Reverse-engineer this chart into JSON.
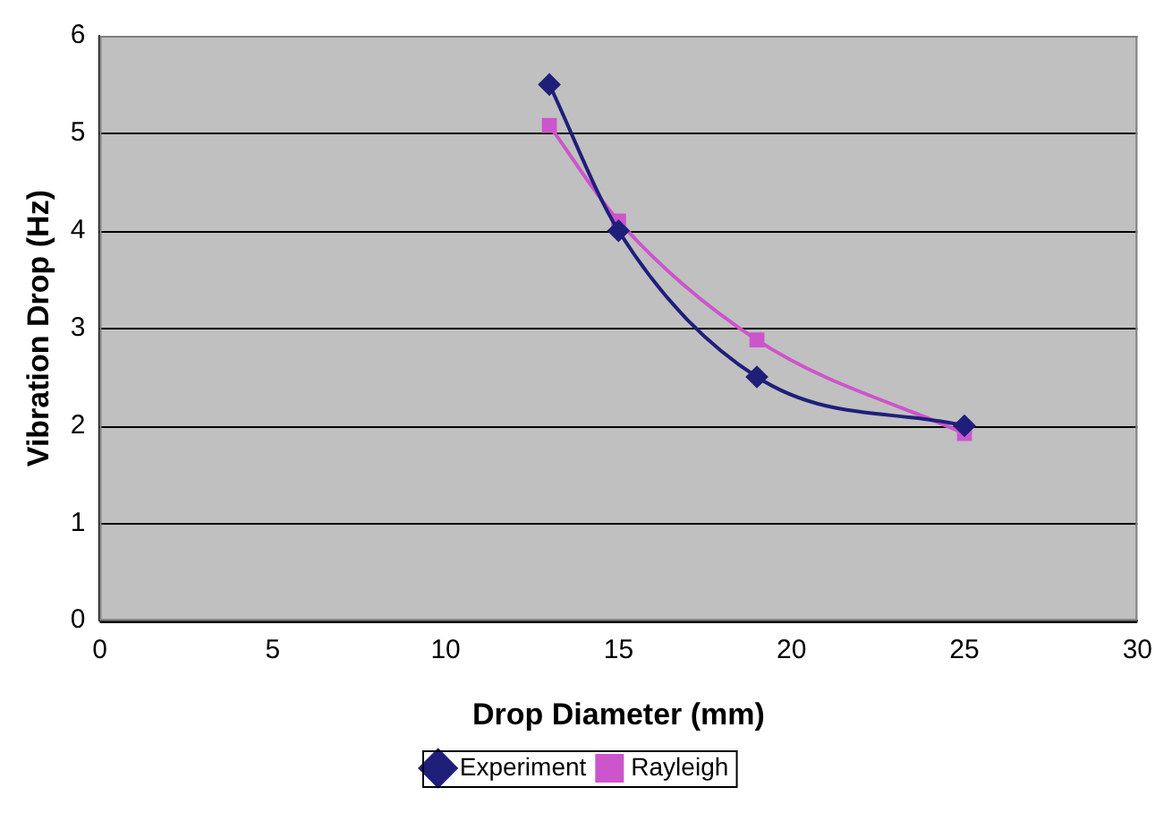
{
  "chart_data": {
    "type": "line",
    "xlabel": "Drop Diameter (mm)",
    "ylabel": "Vibration Drop (Hz)",
    "xlim": [
      0,
      30
    ],
    "xticks": [
      0,
      5,
      10,
      15,
      20,
      25,
      30
    ],
    "ylim": [
      0,
      6
    ],
    "yticks": [
      0,
      1,
      2,
      3,
      4,
      5,
      6
    ],
    "grid": "y",
    "legend": "bottom",
    "series": [
      {
        "name": "Experiment",
        "color": "#1f1f7a",
        "marker": "diamond",
        "x": [
          13,
          15,
          19,
          25
        ],
        "values": [
          5.5,
          4.0,
          2.5,
          2.0
        ]
      },
      {
        "name": "Rayleigh",
        "color": "#cc55cc",
        "marker": "square",
        "x": [
          13,
          15,
          19,
          25
        ],
        "values": [
          5.08,
          4.1,
          2.88,
          1.92
        ]
      }
    ]
  }
}
